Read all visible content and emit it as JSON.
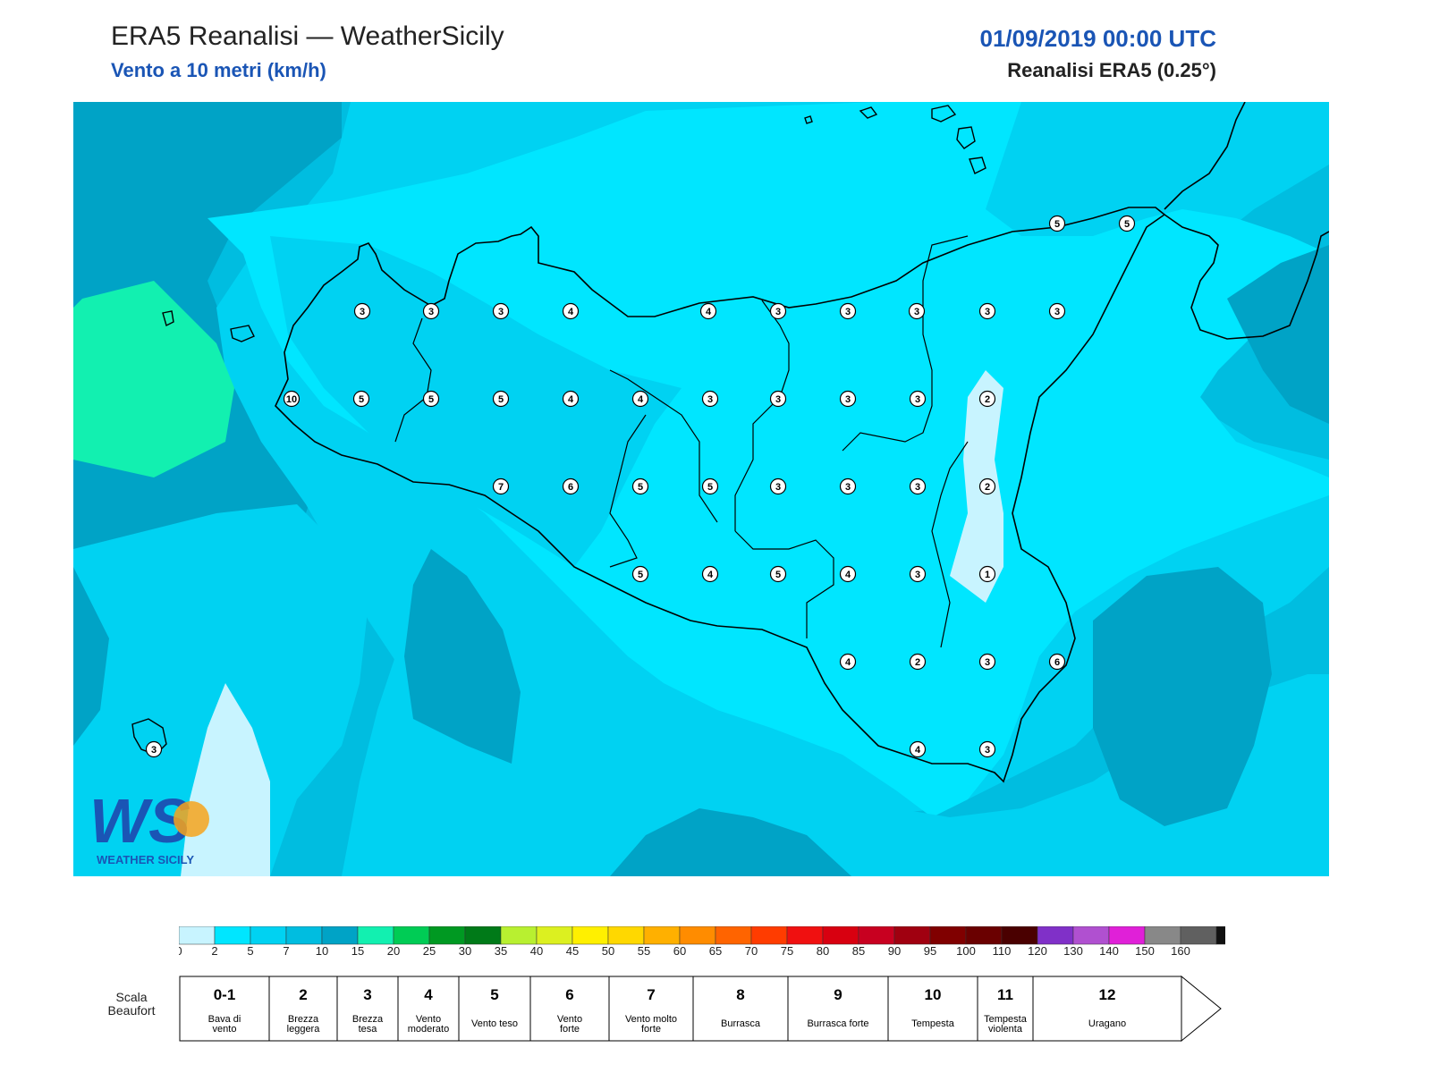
{
  "header": {
    "title": "ERA5 Reanalisi — WeatherSicily",
    "subtitle": "Vento a 10 metri (km/h)",
    "datetime": "01/09/2019 00:00 UTC",
    "source": "Reanalisi ERA5 (0.25°)"
  },
  "logo": {
    "letters": "WS",
    "text": "WEATHER SICILY"
  },
  "map": {
    "field_colors": [
      "#c8f4ff",
      "#00e6ff",
      "#00d2f2",
      "#00bde0",
      "#00a3c6",
      "#12f0b0"
    ],
    "coast_color": "#000000",
    "station_labels": [
      3,
      3,
      3,
      4,
      4,
      3,
      3,
      3,
      3,
      3,
      10,
      5,
      5,
      5,
      4,
      4,
      3,
      3,
      3,
      3,
      2,
      7,
      6,
      5,
      5,
      3,
      3,
      3,
      2,
      5,
      4,
      5,
      4,
      3,
      1,
      4,
      2,
      3,
      6,
      4,
      3,
      5,
      5,
      3
    ]
  },
  "colorbar": {
    "colors": [
      "#c8f4ff",
      "#00e6ff",
      "#00d2f2",
      "#00bde0",
      "#00a3c6",
      "#12f0b0",
      "#00cc55",
      "#009922",
      "#007a18",
      "#b8f030",
      "#dcf020",
      "#fff000",
      "#ffd800",
      "#ffb000",
      "#ff8c00",
      "#ff6400",
      "#ff3c00",
      "#f01010",
      "#d80010",
      "#c80020",
      "#a00010",
      "#800000",
      "#6a0000",
      "#4a0000",
      "#8030c8",
      "#b050d0",
      "#e020d8",
      "#888888",
      "#606060",
      "#111111",
      "#8a4a2a",
      "#c8803e"
    ],
    "ticks": [
      "0",
      "2",
      "5",
      "7",
      "10",
      "15",
      "20",
      "25",
      "30",
      "35",
      "40",
      "45",
      "50",
      "55",
      "60",
      "65",
      "70",
      "75",
      "80",
      "85",
      "90",
      "95",
      "100",
      "110",
      "120",
      "130",
      "140",
      "150",
      "160"
    ]
  },
  "beaufort": {
    "label": "Scala Beaufort",
    "classes": [
      {
        "num": "0-1",
        "name": "Bava di vento"
      },
      {
        "num": "2",
        "name": "Brezza leggera"
      },
      {
        "num": "3",
        "name": "Brezza tesa"
      },
      {
        "num": "4",
        "name": "Vento moderato"
      },
      {
        "num": "5",
        "name": "Vento teso"
      },
      {
        "num": "6",
        "name": "Vento forte"
      },
      {
        "num": "7",
        "name": "Vento molto forte"
      },
      {
        "num": "8",
        "name": "Burrasca"
      },
      {
        "num": "9",
        "name": "Burrasca forte"
      },
      {
        "num": "10",
        "name": "Tempesta"
      },
      {
        "num": "11",
        "name": "Tempesta violenta"
      },
      {
        "num": "12",
        "name": "Uragano"
      }
    ]
  }
}
